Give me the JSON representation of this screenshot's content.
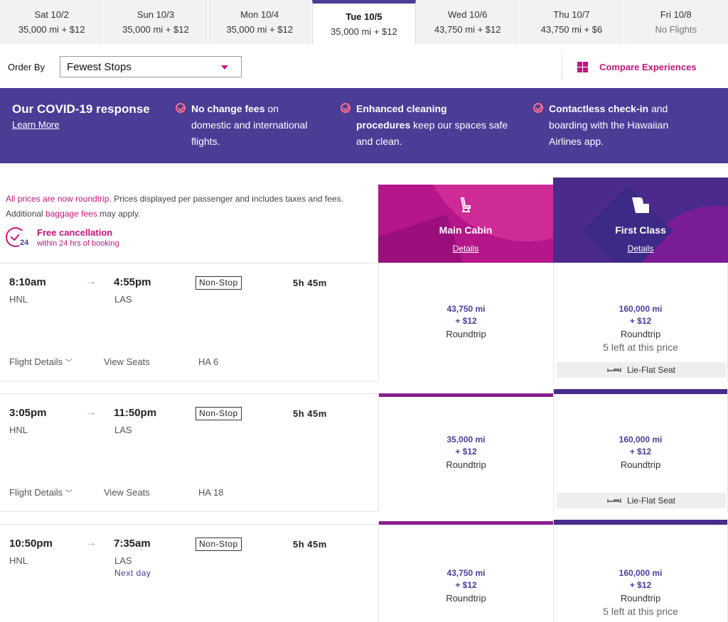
{
  "dates": [
    {
      "day": "Sat 10/2",
      "price": "35,000 mi + $12"
    },
    {
      "day": "Sun 10/3",
      "price": "35,000 mi + $12"
    },
    {
      "day": "Mon 10/4",
      "price": "35,000 mi + $12"
    },
    {
      "day": "Tue 10/5",
      "price": "35,000 mi + $12"
    },
    {
      "day": "Wed 10/6",
      "price": "43,750 mi + $12"
    },
    {
      "day": "Thu 10/7",
      "price": "43,750 mi + $6"
    },
    {
      "day": "Fri 10/8",
      "price": "No Flights"
    }
  ],
  "selected_date_index": 3,
  "order": {
    "label": "Order By",
    "value": "Fewest Stops"
  },
  "compare": {
    "label": "Compare Experiences",
    "icon": "grid-icon"
  },
  "covid": {
    "title": "Our COVID-19 response",
    "link": "Learn More",
    "items": [
      {
        "bold": "No change fees",
        "rest_line1": " on",
        "line2": "domestic and international",
        "line3": "flights."
      },
      {
        "bold": "Enhanced cleaning",
        "rest_line1": "",
        "line2_bold": "procedures",
        "line2": " keep our spaces safe",
        "line3": "and clean."
      },
      {
        "bold": "Contactless check-in",
        "rest_line1": " and",
        "line2": "boarding with the Hawaiian",
        "line3": "Airlines app."
      }
    ]
  },
  "notes": {
    "roundtrip": "All prices are now roundtrip.",
    "prices": " Prices displayed per passenger and includes taxes and fees.",
    "additional": "Additional ",
    "baggage": "baggage fees",
    "may_apply": " may apply."
  },
  "cancellation": {
    "title": "Free cancellation",
    "sub": "within 24 hrs of booking",
    "badge": "24"
  },
  "cabins": [
    {
      "name": "Main Cabin",
      "details": "Details",
      "icon": "seat-icon"
    },
    {
      "name": "First Class",
      "details": "Details",
      "icon": "first-seat-icon"
    }
  ],
  "flights": [
    {
      "dep_time": "8:10am",
      "dep_ap": "HNL",
      "arr_time": "4:55pm",
      "arr_ap": "LAS",
      "next_day": "",
      "stops": "Non-Stop",
      "duration": "5h 45m",
      "flight_details": "Flight Details",
      "view_seats": "View Seats",
      "flight_no": "HA 6",
      "main": {
        "miles": "43,750 mi",
        "fee": "+ $12",
        "type": "Roundtrip",
        "left": ""
      },
      "first": {
        "miles": "160,000 mi",
        "fee": "+ $12",
        "type": "Roundtrip",
        "left": "5 left at this price",
        "seat": "Lie-Flat Seat"
      }
    },
    {
      "dep_time": "3:05pm",
      "dep_ap": "HNL",
      "arr_time": "11:50pm",
      "arr_ap": "LAS",
      "next_day": "",
      "stops": "Non-Stop",
      "duration": "5h 45m",
      "flight_details": "Flight Details",
      "view_seats": "View Seats",
      "flight_no": "HA 18",
      "main": {
        "miles": "35,000 mi",
        "fee": "+ $12",
        "type": "Roundtrip",
        "left": ""
      },
      "first": {
        "miles": "160,000 mi",
        "fee": "+ $12",
        "type": "Roundtrip",
        "left": "",
        "seat": "Lie-Flat Seat"
      }
    },
    {
      "dep_time": "10:50pm",
      "dep_ap": "HNL",
      "arr_time": "7:35am",
      "arr_ap": "LAS",
      "next_day": "Next day",
      "stops": "Non-Stop",
      "duration": "5h 45m",
      "flight_details": "",
      "view_seats": "",
      "flight_no": "",
      "main": {
        "miles": "43,750 mi",
        "fee": "+ $12",
        "type": "Roundtrip",
        "left": ""
      },
      "first": {
        "miles": "160,000 mi",
        "fee": "+ $12",
        "type": "Roundtrip",
        "left": "5 left at this price",
        "seat": ""
      }
    }
  ],
  "colors": {
    "brand_purple": "#4b3c96",
    "brand_magenta": "#c0157f"
  }
}
